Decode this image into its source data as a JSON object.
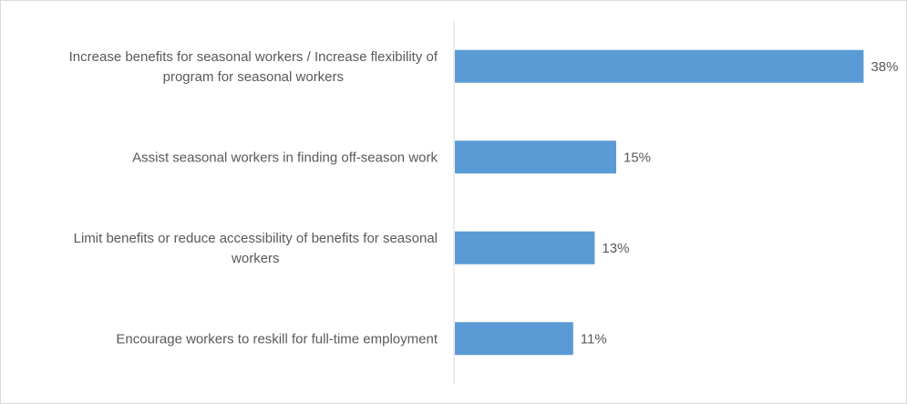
{
  "chart_data": {
    "type": "bar",
    "orientation": "horizontal",
    "title": "",
    "xlabel": "",
    "ylabel": "",
    "categories": [
      "Increase benefits for seasonal workers / Increase flexibility of program for seasonal workers",
      "Assist seasonal workers in finding off-season work",
      "Limit benefits or reduce accessibility of benefits for seasonal workers",
      "Encourage workers to reskill for full-time employment"
    ],
    "category_label_lines": [
      [
        "Increase benefits for seasonal workers / Increase flexibility of",
        "program for seasonal workers"
      ],
      [
        "Assist seasonal workers in finding off-season work"
      ],
      [
        "Limit benefits or reduce accessibility of benefits for seasonal",
        "workers"
      ],
      [
        "Encourage workers to reskill for full-time employment"
      ]
    ],
    "values": [
      38,
      15,
      13,
      11
    ],
    "data_labels": [
      "38%",
      "15%",
      "13%",
      "11%"
    ],
    "value_unit": "%",
    "xlim": [
      0,
      40
    ],
    "bar_color": "#5b9bd5",
    "axis_color": "#d9d9d9",
    "grid": false,
    "legend": "none"
  }
}
